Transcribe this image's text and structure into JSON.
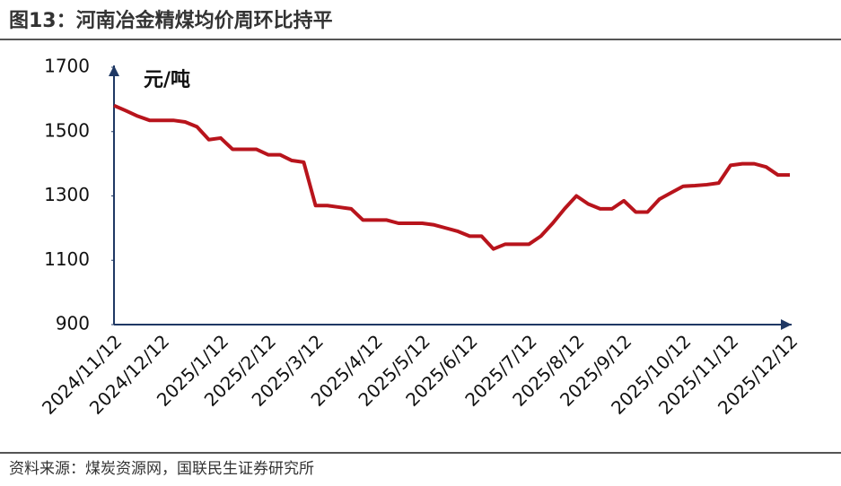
{
  "chart_data": {
    "type": "line",
    "title": "图13：河南冶金精煤均价周环比持平",
    "y_label": "元/吨",
    "source": "资料来源：煤炭资源网，国联民生证券研究所",
    "categories": [
      "2024/11/12",
      null,
      null,
      null,
      "2024/12/12",
      null,
      null,
      null,
      null,
      "2025/1/12",
      null,
      null,
      null,
      "2025/2/12",
      null,
      null,
      null,
      "2025/3/12",
      null,
      null,
      null,
      null,
      "2025/4/12",
      null,
      null,
      null,
      "2025/5/12",
      null,
      null,
      null,
      "2025/6/12",
      null,
      null,
      null,
      null,
      "2025/7/12",
      null,
      null,
      null,
      "2025/8/12",
      null,
      null,
      null,
      "2025/9/12",
      null,
      null,
      null,
      null,
      "2025/10/12",
      null,
      null,
      null,
      "2025/11/12",
      null,
      null,
      null,
      null,
      "2025/12/12"
    ],
    "values": [
      1581,
      1565,
      1548,
      1535,
      1535,
      1535,
      1530,
      1515,
      1475,
      1480,
      1445,
      1445,
      1445,
      1428,
      1428,
      1410,
      1405,
      1270,
      1270,
      1265,
      1260,
      1225,
      1225,
      1225,
      1215,
      1215,
      1215,
      1210,
      1200,
      1190,
      1175,
      1175,
      1135,
      1150,
      1150,
      1150,
      1175,
      1215,
      1260,
      1300,
      1275,
      1260,
      1260,
      1285,
      1250,
      1250,
      1290,
      1310,
      1330,
      1332,
      1335,
      1340,
      1395,
      1400,
      1400,
      1390,
      1365,
      1365
    ],
    "color": "#b8141c",
    "ylim": [
      900,
      1700
    ],
    "yticks": [
      900,
      1100,
      1300,
      1500,
      1700
    ]
  }
}
